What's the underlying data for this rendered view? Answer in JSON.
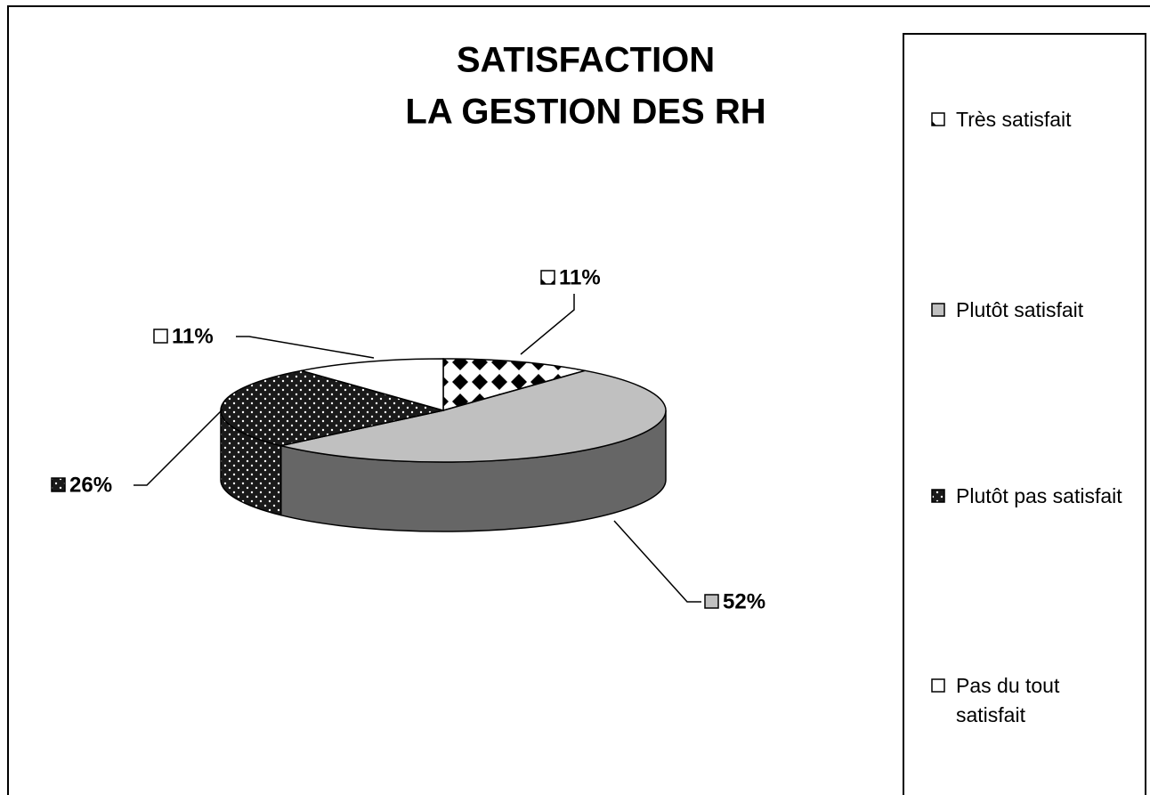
{
  "chart_data": {
    "type": "pie3d",
    "title": [
      "SATISFACTION",
      "LA GESTION DES RH"
    ],
    "categories": [
      "Très satisfait",
      "Plutôt satisfait",
      "Plutôt pas satisfait",
      "Pas du tout satisfait"
    ],
    "values": [
      11,
      52,
      26,
      11
    ],
    "value_labels": [
      "11%",
      "52%",
      "26%",
      "11%"
    ],
    "colors": [
      "#ffffff",
      "#c0c0c0",
      "#1a1a1a",
      "#ffffff"
    ],
    "patterns": [
      "checker",
      "none",
      "dots",
      "none"
    ],
    "legend": "right"
  }
}
